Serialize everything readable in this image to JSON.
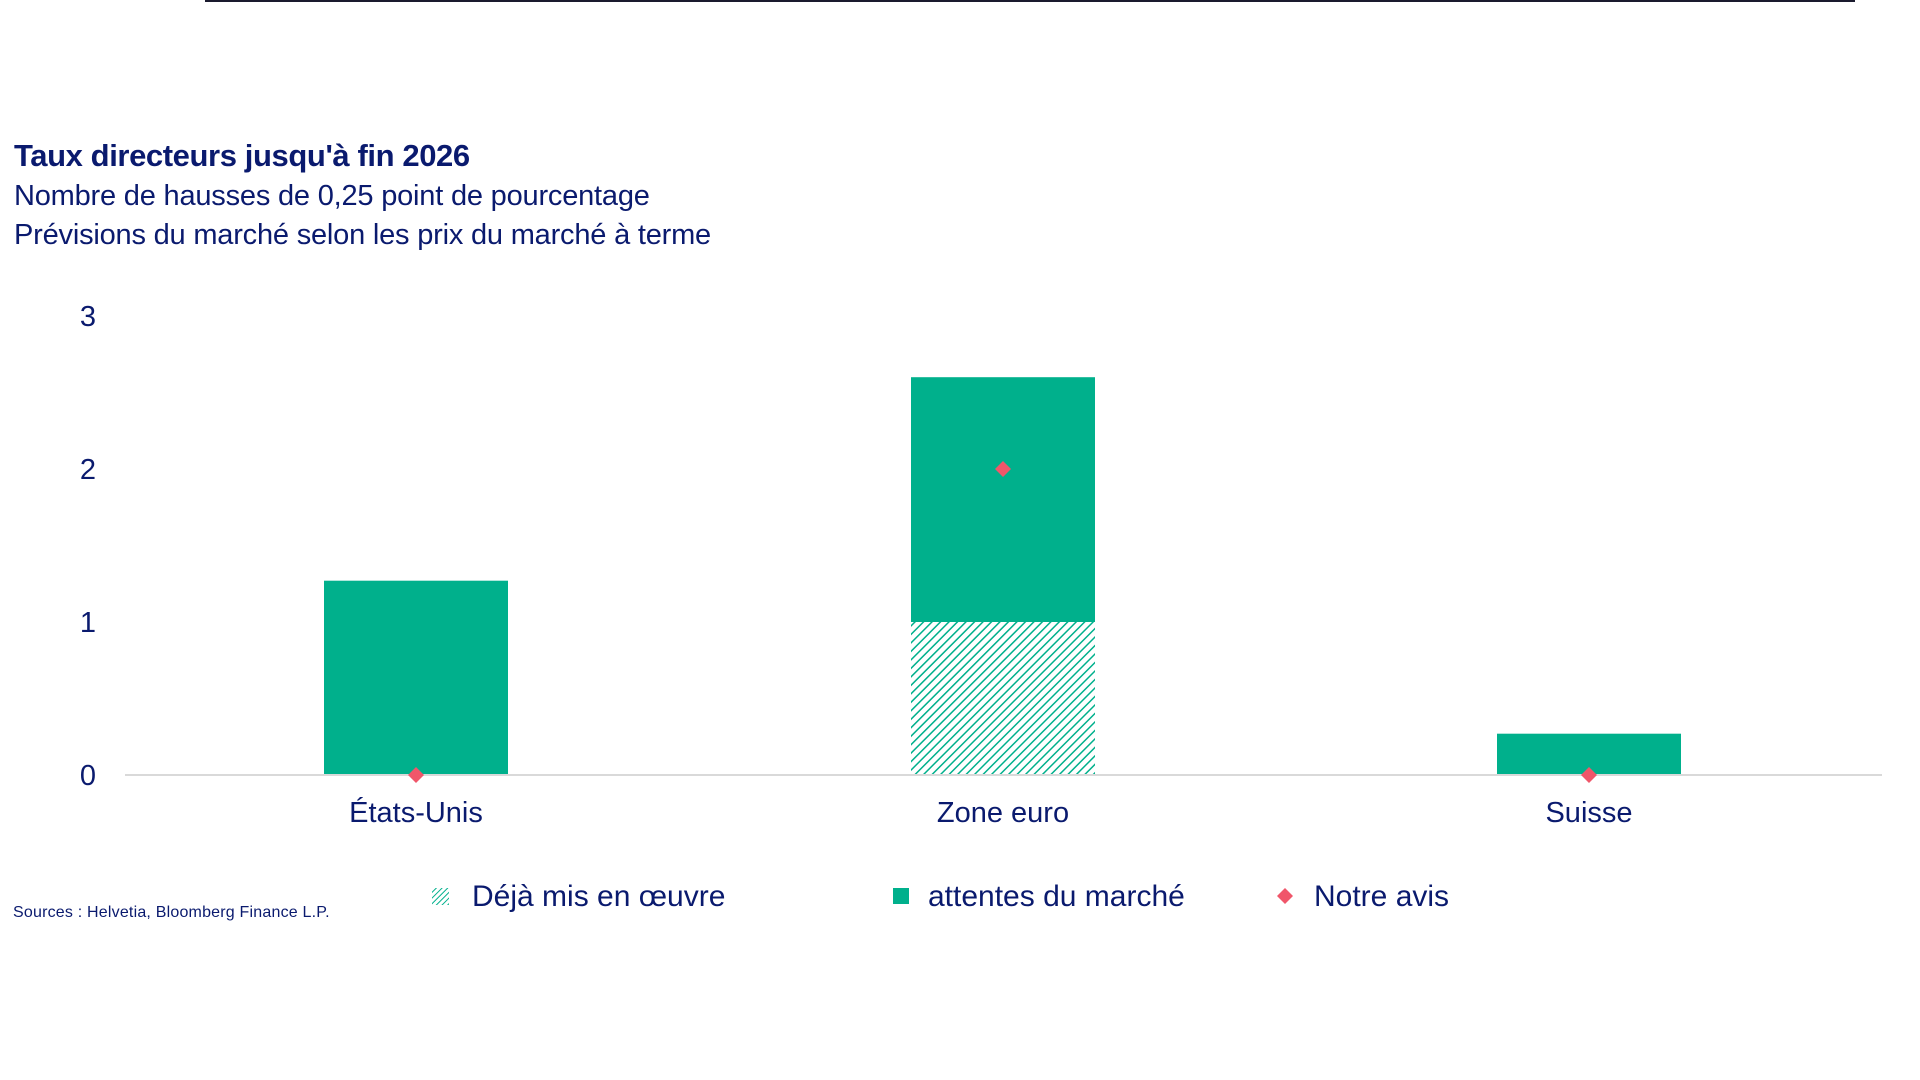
{
  "title": "Taux directeurs jusqu'à fin 2026",
  "subtitle1": "Nombre de hausses de 0,25 point de pourcentage",
  "subtitle2": "Prévisions du marché selon les prix du marché à terme",
  "source": "Sources : Helvetia, Bloomberg Finance L.P.",
  "colors": {
    "market": "#00b08c",
    "already": "#00b08c",
    "opinion": "#f0566a",
    "text": "#0a1a6e",
    "axis": "#d9d9d9"
  },
  "chart_data": {
    "type": "bar",
    "stacked": true,
    "categories": [
      "États-Unis",
      "Zone euro",
      "Suisse"
    ],
    "series": [
      {
        "name": "Déjà mis en œuvre",
        "style": "hatched",
        "values": [
          0,
          1,
          0
        ]
      },
      {
        "name": "attentes du marché",
        "style": "solid",
        "values": [
          1.27,
          1.6,
          0.27
        ]
      }
    ],
    "markers": {
      "name": "Notre avis",
      "shape": "diamond",
      "values": [
        0,
        2,
        0
      ]
    },
    "yticks": [
      "0",
      "1",
      "2",
      "3"
    ],
    "ylim": [
      0,
      3
    ],
    "grid": false,
    "legend": "bottom"
  }
}
